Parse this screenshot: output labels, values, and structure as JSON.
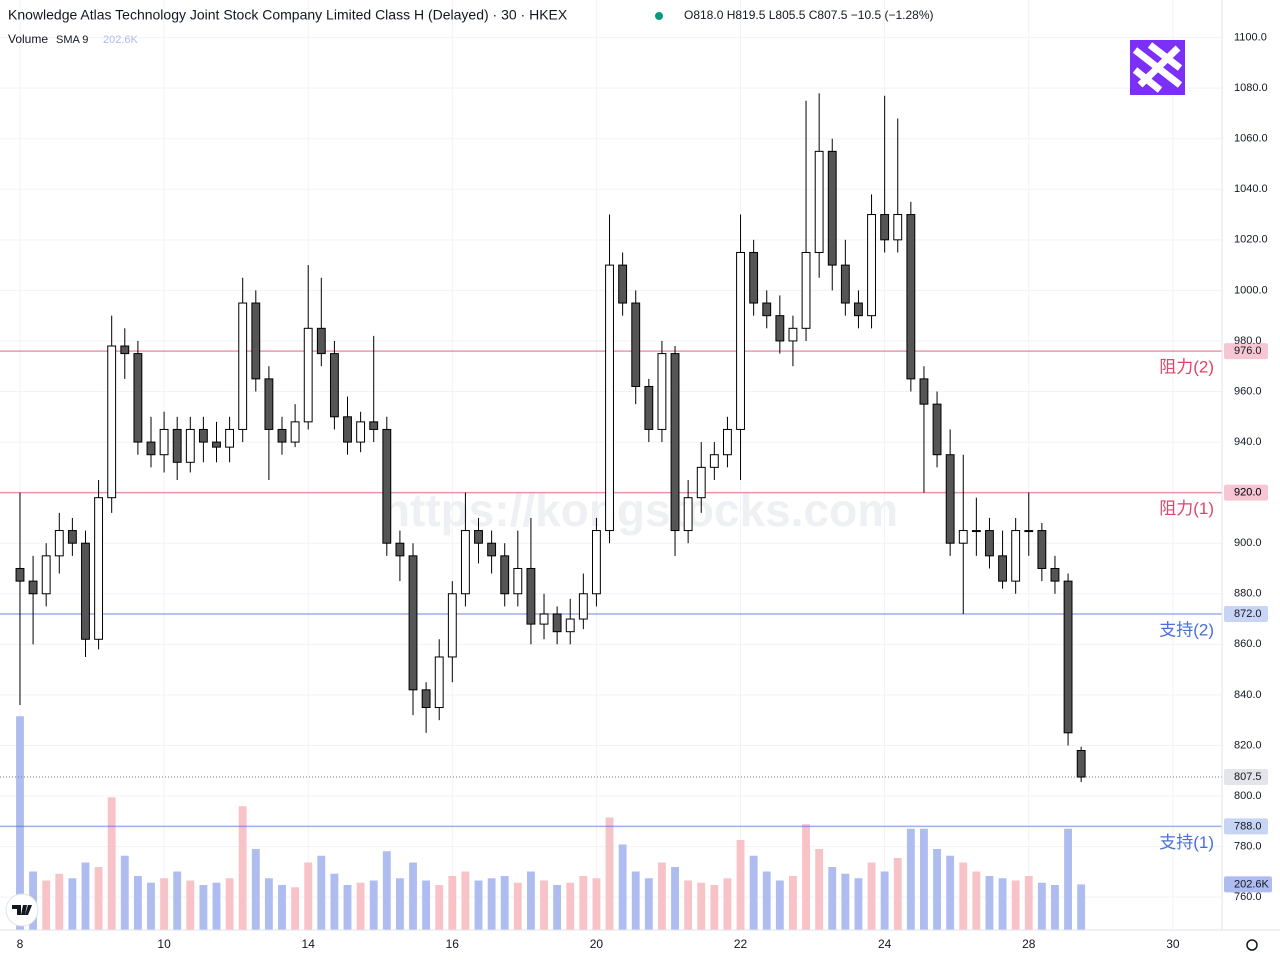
{
  "chart_data": {
    "type": "candlestick",
    "title": "Knowledge Atlas Technology Joint Stock Company Limited Class H (Delayed) · 30 · HKEX",
    "quote": "O818.0 H819.5 L805.5 C807.5 −10.5 (−1.28%)",
    "watermark": "https://kongstocks.com",
    "legend": {
      "name": "Volume",
      "study": "SMA 9",
      "value": "202.6K"
    },
    "x": [
      0,
      2,
      4,
      6,
      8,
      10,
      12,
      14,
      16,
      18,
      20,
      22,
      24,
      26,
      28,
      30,
      32,
      34,
      36,
      38,
      40,
      42,
      44,
      46,
      48,
      50,
      52,
      54,
      56,
      58,
      60,
      62,
      64,
      66,
      68,
      70,
      72,
      74,
      76,
      78,
      80,
      82,
      84,
      86,
      88,
      90,
      92,
      94,
      96,
      98,
      100,
      102,
      104,
      106,
      108,
      110,
      112,
      114,
      116,
      118,
      120,
      122,
      124,
      126,
      128,
      130,
      132,
      134,
      136,
      138,
      140,
      142,
      144,
      146,
      148,
      150,
      152,
      154,
      156,
      158,
      160,
      162
    ],
    "open": [
      890,
      885,
      880,
      895,
      905,
      900,
      862,
      918,
      978,
      975,
      940,
      935,
      945,
      932,
      945,
      940,
      938,
      945,
      995,
      965,
      945,
      940,
      948,
      985,
      975,
      950,
      940,
      948,
      945,
      900,
      895,
      842,
      835,
      855,
      880,
      905,
      900,
      895,
      880,
      890,
      868,
      872,
      865,
      870,
      880,
      905,
      1010,
      995,
      962,
      945,
      975,
      905,
      918,
      930,
      935,
      945,
      1015,
      995,
      990,
      980,
      985,
      1015,
      1055,
      1010,
      995,
      990,
      1030,
      1020,
      1030,
      965,
      955,
      935,
      900,
      905,
      905,
      895,
      885,
      905,
      905,
      890,
      885,
      818
    ],
    "high": [
      920,
      895,
      900,
      912,
      910,
      905,
      925,
      990,
      985,
      980,
      950,
      952,
      950,
      950,
      950,
      948,
      950,
      1005,
      1000,
      970,
      950,
      955,
      1010,
      1005,
      980,
      958,
      952,
      982,
      950,
      905,
      900,
      845,
      862,
      885,
      920,
      910,
      905,
      900,
      905,
      910,
      880,
      875,
      878,
      888,
      910,
      1030,
      1015,
      1000,
      965,
      980,
      978,
      925,
      940,
      940,
      950,
      1030,
      1020,
      1000,
      998,
      990,
      1075,
      1078,
      1060,
      1020,
      1000,
      1038,
      1077,
      1068,
      1035,
      970,
      960,
      945,
      935,
      918,
      910,
      905,
      910,
      920,
      908,
      895,
      888,
      819.5
    ],
    "low": [
      836,
      860,
      875,
      888,
      895,
      855,
      858,
      912,
      965,
      935,
      930,
      928,
      925,
      928,
      932,
      932,
      932,
      940,
      960,
      925,
      935,
      938,
      945,
      970,
      945,
      935,
      936,
      940,
      895,
      885,
      832,
      825,
      830,
      845,
      875,
      892,
      888,
      875,
      875,
      860,
      862,
      860,
      860,
      866,
      875,
      900,
      990,
      955,
      940,
      940,
      895,
      900,
      912,
      925,
      930,
      925,
      990,
      985,
      975,
      970,
      980,
      1005,
      1000,
      990,
      985,
      985,
      1015,
      1015,
      960,
      920,
      930,
      895,
      872,
      895,
      890,
      882,
      880,
      895,
      885,
      880,
      820,
      805.5
    ],
    "close": [
      885,
      880,
      895,
      905,
      900,
      862,
      918,
      978,
      975,
      940,
      935,
      945,
      932,
      945,
      940,
      938,
      945,
      995,
      965,
      945,
      940,
      948,
      985,
      975,
      950,
      940,
      948,
      945,
      900,
      895,
      842,
      835,
      855,
      880,
      905,
      900,
      895,
      880,
      890,
      868,
      872,
      865,
      870,
      880,
      905,
      1010,
      995,
      962,
      945,
      975,
      905,
      918,
      930,
      935,
      945,
      1015,
      995,
      990,
      980,
      985,
      1015,
      1055,
      1010,
      995,
      990,
      1030,
      1020,
      1030,
      965,
      955,
      935,
      900,
      905,
      905,
      895,
      885,
      905,
      905,
      890,
      885,
      825,
      807.5
    ],
    "volume": [
      950000,
      260000,
      220000,
      250000,
      230000,
      300000,
      280000,
      590000,
      330000,
      240000,
      210000,
      230000,
      260000,
      220000,
      200000,
      210000,
      230000,
      550000,
      360000,
      230000,
      200000,
      190000,
      300000,
      330000,
      250000,
      200000,
      210000,
      220000,
      350000,
      230000,
      300000,
      220000,
      200000,
      240000,
      260000,
      220000,
      230000,
      240000,
      210000,
      260000,
      220000,
      200000,
      210000,
      240000,
      230000,
      500000,
      380000,
      260000,
      230000,
      300000,
      280000,
      220000,
      210000,
      200000,
      230000,
      400000,
      330000,
      260000,
      220000,
      240000,
      470000,
      360000,
      280000,
      250000,
      230000,
      300000,
      260000,
      320000,
      450000,
      450000,
      360000,
      330000,
      300000,
      260000,
      240000,
      230000,
      220000,
      240000,
      210000,
      200000,
      450000,
      202600
    ],
    "up_color": "#f7c3c7",
    "down_color": "#aebcf0",
    "xlim": [
      -3.05,
      183.5
    ],
    "xticks": [
      {
        "value": 0,
        "label": "8"
      },
      {
        "value": 22,
        "label": "10"
      },
      {
        "value": 44,
        "label": "14"
      },
      {
        "value": 66,
        "label": "16"
      },
      {
        "value": 88,
        "label": "20"
      },
      {
        "value": 110,
        "label": "22"
      },
      {
        "value": 132,
        "label": "24"
      },
      {
        "value": 154,
        "label": "28"
      },
      {
        "value": 176,
        "label": "30"
      }
    ],
    "ylim": [
      747,
      1103
    ],
    "yticks": [
      {
        "value": 760,
        "label": "760.0"
      },
      {
        "value": 780,
        "label": "780.0"
      },
      {
        "value": 800,
        "label": "800.0"
      },
      {
        "value": 820,
        "label": "820.0"
      },
      {
        "value": 840,
        "label": "840.0"
      },
      {
        "value": 860,
        "label": "860.0"
      },
      {
        "value": 880,
        "label": "880.0"
      },
      {
        "value": 900,
        "label": "900.0"
      },
      {
        "value": 920,
        "label": "920.0"
      },
      {
        "value": 940,
        "label": "940.0"
      },
      {
        "value": 960,
        "label": "960.0"
      },
      {
        "value": 980,
        "label": "980.0"
      },
      {
        "value": 1000,
        "label": "1000.0"
      },
      {
        "value": 1020,
        "label": "1020.0"
      },
      {
        "value": 1040,
        "label": "1040.0"
      },
      {
        "value": 1060,
        "label": "1060.0"
      },
      {
        "value": 1080,
        "label": "1080.0"
      },
      {
        "value": 1100,
        "label": "1100.0"
      }
    ],
    "y2lim": [
      0,
      4000000
    ],
    "grid": true,
    "levels": [
      {
        "value": 976,
        "label": "976.0",
        "name": "阻力(2)",
        "color": "#e0446a"
      },
      {
        "value": 920,
        "label": "920.0",
        "name": "阻力(1)",
        "color": "#e0446a"
      },
      {
        "value": 872,
        "label": "872.0",
        "name": "支持(2)",
        "color": "#4a6fd8"
      },
      {
        "value": 788,
        "label": "788.0",
        "name": "支持(1)",
        "color": "#4a6fd8"
      }
    ],
    "last_price": {
      "value": 807.5,
      "label": "807.5"
    },
    "last_volume": {
      "value": 202600,
      "label": "202.6K"
    }
  }
}
